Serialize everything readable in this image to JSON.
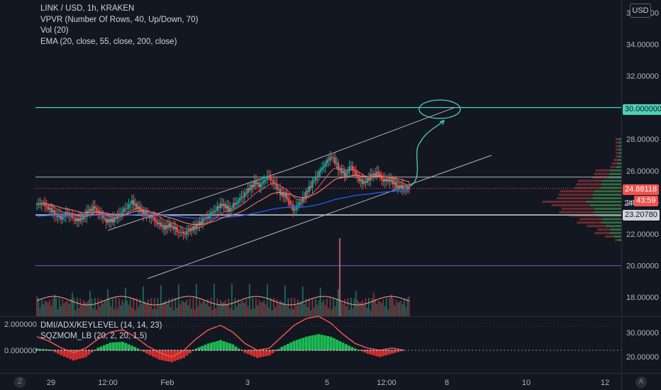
{
  "legend": {
    "symbol": "LINK / USD, 1h, KRAKEN",
    "indicator1": "VPVR (Number Of Rows, 40, Up/Down, 70)",
    "indicator2": "Vol (20)",
    "indicator3": "EMA (20, close, 55, close, 200, close)"
  },
  "lower_legend": {
    "indicator1": "DMI/ADX/KEYLEVEL (14, 14, 23)",
    "indicator2": "SQZMOM_LB (20, 2, 20, 1.5)"
  },
  "currency": "USD",
  "price_tags": {
    "level_30": "30.000000",
    "last_price": "24.88118",
    "countdown": "43:59",
    "level_23": "23.20780",
    "partial_24": "24"
  },
  "corner_left": "Z",
  "corner_right": "A",
  "colors": {
    "up": "#26a69a",
    "down": "#ef5350",
    "teal_line": "#4dd0b8",
    "purple_line": "#7e57c2",
    "white_line": "#d1d4dc",
    "lavender_line": "#b2b5be",
    "ema20": "#f7525f",
    "ema55": "#ff8a65",
    "ema200": "#2962ff"
  },
  "chart_data": [
    {
      "type": "candlestick",
      "title": "LINK / USD, 1h, KRAKEN",
      "y_axis_labels": [
        "36.00000",
        "34.00000",
        "32.00000",
        "30.00000",
        "28.00000",
        "26.00000",
        "24.00000",
        "22.00000",
        "20.00000",
        "18.00000"
      ],
      "y_ticks": [
        36,
        34,
        32,
        30,
        28,
        26,
        24,
        22,
        20,
        18
      ],
      "x_axis_labels": [
        "29",
        "12:00",
        "Feb",
        "3",
        "5",
        "12:00",
        "8",
        "10",
        "12"
      ],
      "ylim": [
        16.8,
        36.8
      ],
      "price_series_close": [
        23.9,
        23.6,
        23.3,
        23.1,
        23.4,
        23.0,
        22.9,
        23.3,
        23.6,
        23.2,
        22.8,
        22.9,
        23.3,
        23.7,
        24.1,
        23.6,
        23.2,
        23.0,
        22.6,
        22.4,
        22.6,
        22.3,
        22.1,
        22.3,
        22.5,
        22.8,
        23.1,
        23.5,
        23.9,
        23.6,
        24.0,
        24.4,
        24.8,
        25.2,
        25.0,
        25.6,
        25.2,
        24.6,
        24.4,
        23.6,
        24.0,
        24.6,
        25.2,
        25.8,
        26.4,
        26.9,
        26.2,
        25.8,
        26.4,
        25.6,
        25.2,
        25.6,
        25.8,
        25.3,
        25.4,
        25.1,
        25.0,
        24.9
      ],
      "horizontal_levels": [
        {
          "price": 30.0,
          "label": "30.000000"
        },
        {
          "price": 25.6
        },
        {
          "price": 24.88118,
          "label": "24.88118"
        },
        {
          "price": 23.2078,
          "label": "23.20780"
        },
        {
          "price": 20.0
        }
      ],
      "series": [
        {
          "name": "EMA 20"
        },
        {
          "name": "EMA 55"
        },
        {
          "name": "EMA 200"
        }
      ]
    },
    {
      "type": "area",
      "title": "DMI/ADX/KEYLEVEL + SQZMOM_LB",
      "left_axis_labels": [
        "2.000000",
        "0.000000"
      ],
      "right_axis_labels": [
        "30.00000",
        "20.00000"
      ],
      "squeeze_momentum": [
        0.2,
        0.1,
        -0.6,
        -1.2,
        -0.8,
        0.3,
        0.9,
        1.0,
        0.4,
        -0.4,
        -1.1,
        -1.4,
        -0.9,
        0.2,
        0.8,
        1.2,
        0.7,
        -0.3,
        -0.9,
        -0.6,
        0.4,
        1.1,
        1.6,
        1.9,
        1.6,
        0.9,
        0.2,
        -0.4,
        -0.8,
        -0.4,
        0.0
      ],
      "dmi_line": [
        26,
        24,
        21,
        19,
        21,
        25,
        28,
        29,
        26,
        22,
        19,
        17,
        20,
        25,
        29,
        31,
        28,
        23,
        20,
        21,
        26,
        31,
        34,
        35,
        32,
        27,
        23,
        21,
        20,
        21,
        20
      ]
    }
  ]
}
